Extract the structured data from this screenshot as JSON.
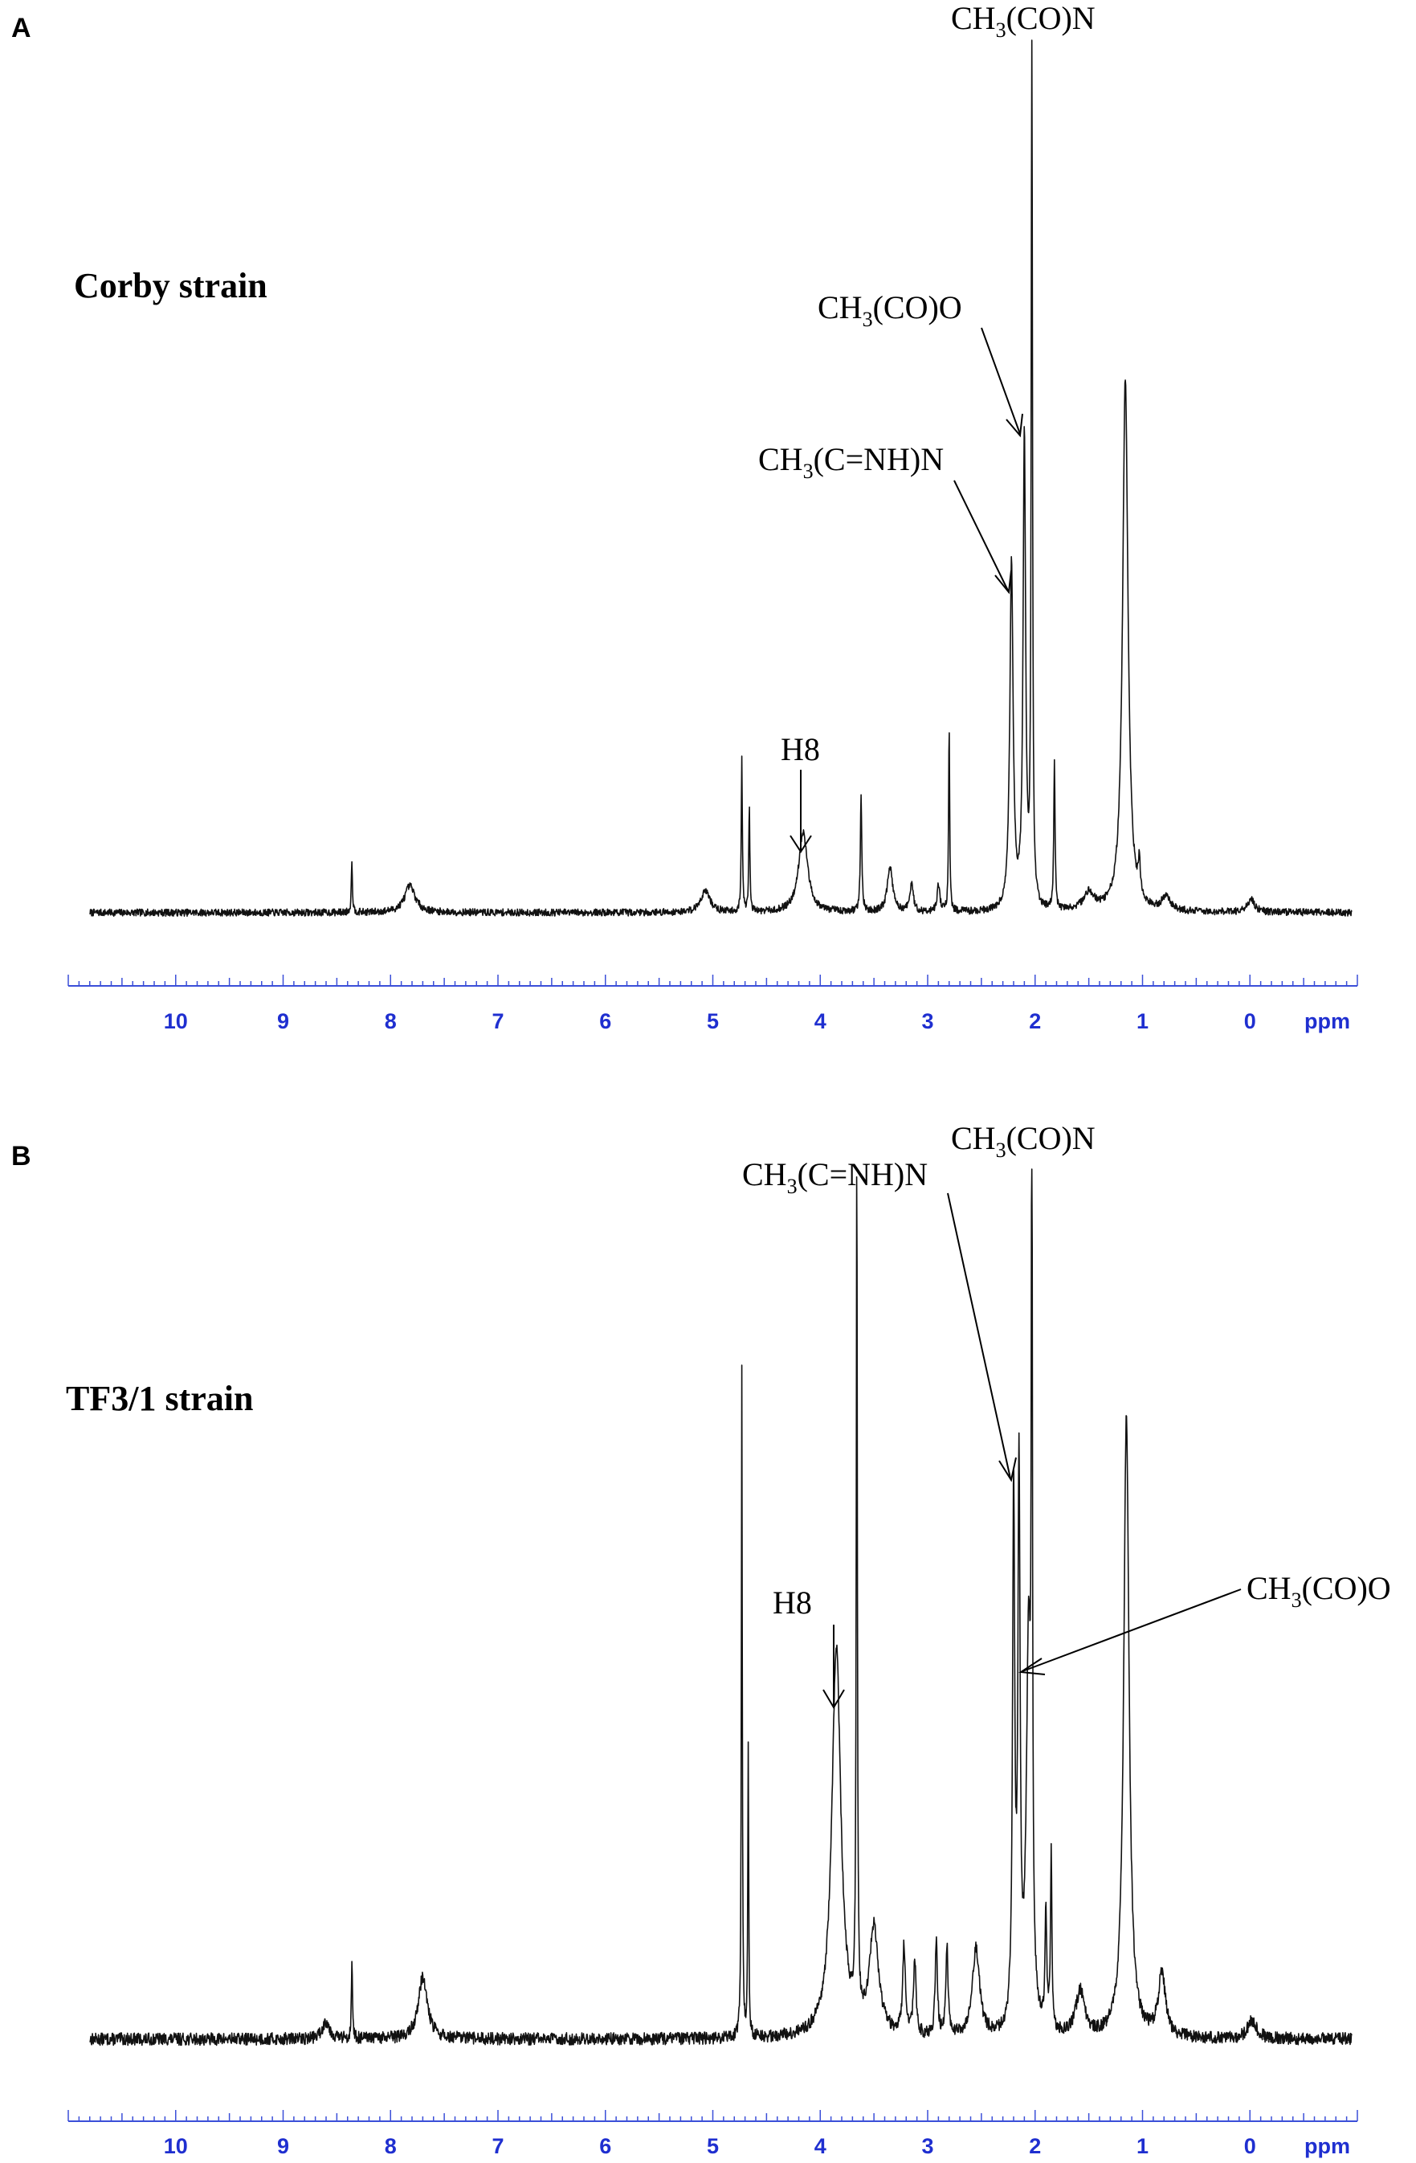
{
  "chart_data": [
    {
      "type": "line",
      "panel": "A",
      "strain_label": "Corby strain",
      "x_unit_label": "ppm",
      "xlim": [
        11,
        -1
      ],
      "x_reversed": true,
      "x_ticks": [
        10,
        9,
        8,
        7,
        6,
        5,
        4,
        3,
        2,
        1,
        0
      ],
      "ylim": [
        0,
        1
      ],
      "baseline": 0.02,
      "noise": 0.004,
      "peaks": [
        {
          "x": 8.36,
          "h": 0.06,
          "w": 0.006
        },
        {
          "x": 7.82,
          "h": 0.03,
          "w": 0.06
        },
        {
          "x": 5.07,
          "h": 0.025,
          "w": 0.05
        },
        {
          "x": 4.73,
          "h": 0.17,
          "w": 0.006
        },
        {
          "x": 4.66,
          "h": 0.12,
          "w": 0.006
        },
        {
          "x": 4.16,
          "h": 0.09,
          "w": 0.05
        },
        {
          "x": 3.62,
          "h": 0.13,
          "w": 0.008
        },
        {
          "x": 3.35,
          "h": 0.05,
          "w": 0.03
        },
        {
          "x": 3.15,
          "h": 0.03,
          "w": 0.02
        },
        {
          "x": 2.9,
          "h": 0.03,
          "w": 0.015
        },
        {
          "x": 2.8,
          "h": 0.21,
          "w": 0.006
        },
        {
          "x": 2.22,
          "h": 0.39,
          "w": 0.018
        },
        {
          "x": 2.1,
          "h": 0.53,
          "w": 0.014
        },
        {
          "x": 2.03,
          "h": 1.0,
          "w": 0.007
        },
        {
          "x": 1.82,
          "h": 0.17,
          "w": 0.007
        },
        {
          "x": 1.5,
          "h": 0.02,
          "w": 0.06
        },
        {
          "x": 1.16,
          "h": 0.6,
          "w": 0.03
        },
        {
          "x": 1.03,
          "h": 0.04,
          "w": 0.01
        },
        {
          "x": 0.78,
          "h": 0.015,
          "w": 0.05
        },
        {
          "x": -0.01,
          "h": 0.015,
          "w": 0.04
        }
      ],
      "annotations": [
        {
          "text": "CH3(CO)N",
          "x": 2.03
        },
        {
          "text": "CH3(CO)O",
          "x": 2.1
        },
        {
          "text": "CH3(C=NH)N",
          "x": 2.22
        },
        {
          "text": "H8",
          "x": 4.16
        }
      ]
    },
    {
      "type": "line",
      "panel": "B",
      "strain_label": "TF3/1 strain",
      "x_unit_label": "ppm",
      "xlim": [
        11,
        -1
      ],
      "x_reversed": true,
      "x_ticks": [
        10,
        9,
        8,
        7,
        6,
        5,
        4,
        3,
        2,
        1,
        0
      ],
      "ylim": [
        0,
        1
      ],
      "baseline": 0.02,
      "noise": 0.007,
      "peaks": [
        {
          "x": 8.36,
          "h": 0.09,
          "w": 0.006
        },
        {
          "x": 8.6,
          "h": 0.02,
          "w": 0.04
        },
        {
          "x": 7.7,
          "h": 0.07,
          "w": 0.05
        },
        {
          "x": 4.73,
          "h": 0.76,
          "w": 0.005
        },
        {
          "x": 4.67,
          "h": 0.33,
          "w": 0.005
        },
        {
          "x": 3.85,
          "h": 0.44,
          "w": 0.05
        },
        {
          "x": 3.66,
          "h": 0.97,
          "w": 0.006
        },
        {
          "x": 3.5,
          "h": 0.12,
          "w": 0.05
        },
        {
          "x": 3.22,
          "h": 0.1,
          "w": 0.015
        },
        {
          "x": 3.12,
          "h": 0.08,
          "w": 0.015
        },
        {
          "x": 2.92,
          "h": 0.11,
          "w": 0.012
        },
        {
          "x": 2.82,
          "h": 0.1,
          "w": 0.012
        },
        {
          "x": 2.55,
          "h": 0.1,
          "w": 0.04
        },
        {
          "x": 2.2,
          "h": 0.6,
          "w": 0.012
        },
        {
          "x": 2.15,
          "h": 0.62,
          "w": 0.012
        },
        {
          "x": 2.06,
          "h": 0.44,
          "w": 0.025
        },
        {
          "x": 2.03,
          "h": 1.0,
          "w": 0.006
        },
        {
          "x": 1.9,
          "h": 0.13,
          "w": 0.01
        },
        {
          "x": 1.85,
          "h": 0.2,
          "w": 0.008
        },
        {
          "x": 1.58,
          "h": 0.05,
          "w": 0.05
        },
        {
          "x": 1.15,
          "h": 0.7,
          "w": 0.03
        },
        {
          "x": 0.82,
          "h": 0.07,
          "w": 0.04
        },
        {
          "x": -0.02,
          "h": 0.02,
          "w": 0.05
        }
      ],
      "annotations": [
        {
          "text": "CH3(CO)N",
          "x": 2.03
        },
        {
          "text": "CH3(C=NH)N",
          "x": 2.2
        },
        {
          "text": "CH3(CO)O",
          "x": 2.06
        },
        {
          "text": "H8",
          "x": 3.85
        }
      ]
    }
  ]
}
